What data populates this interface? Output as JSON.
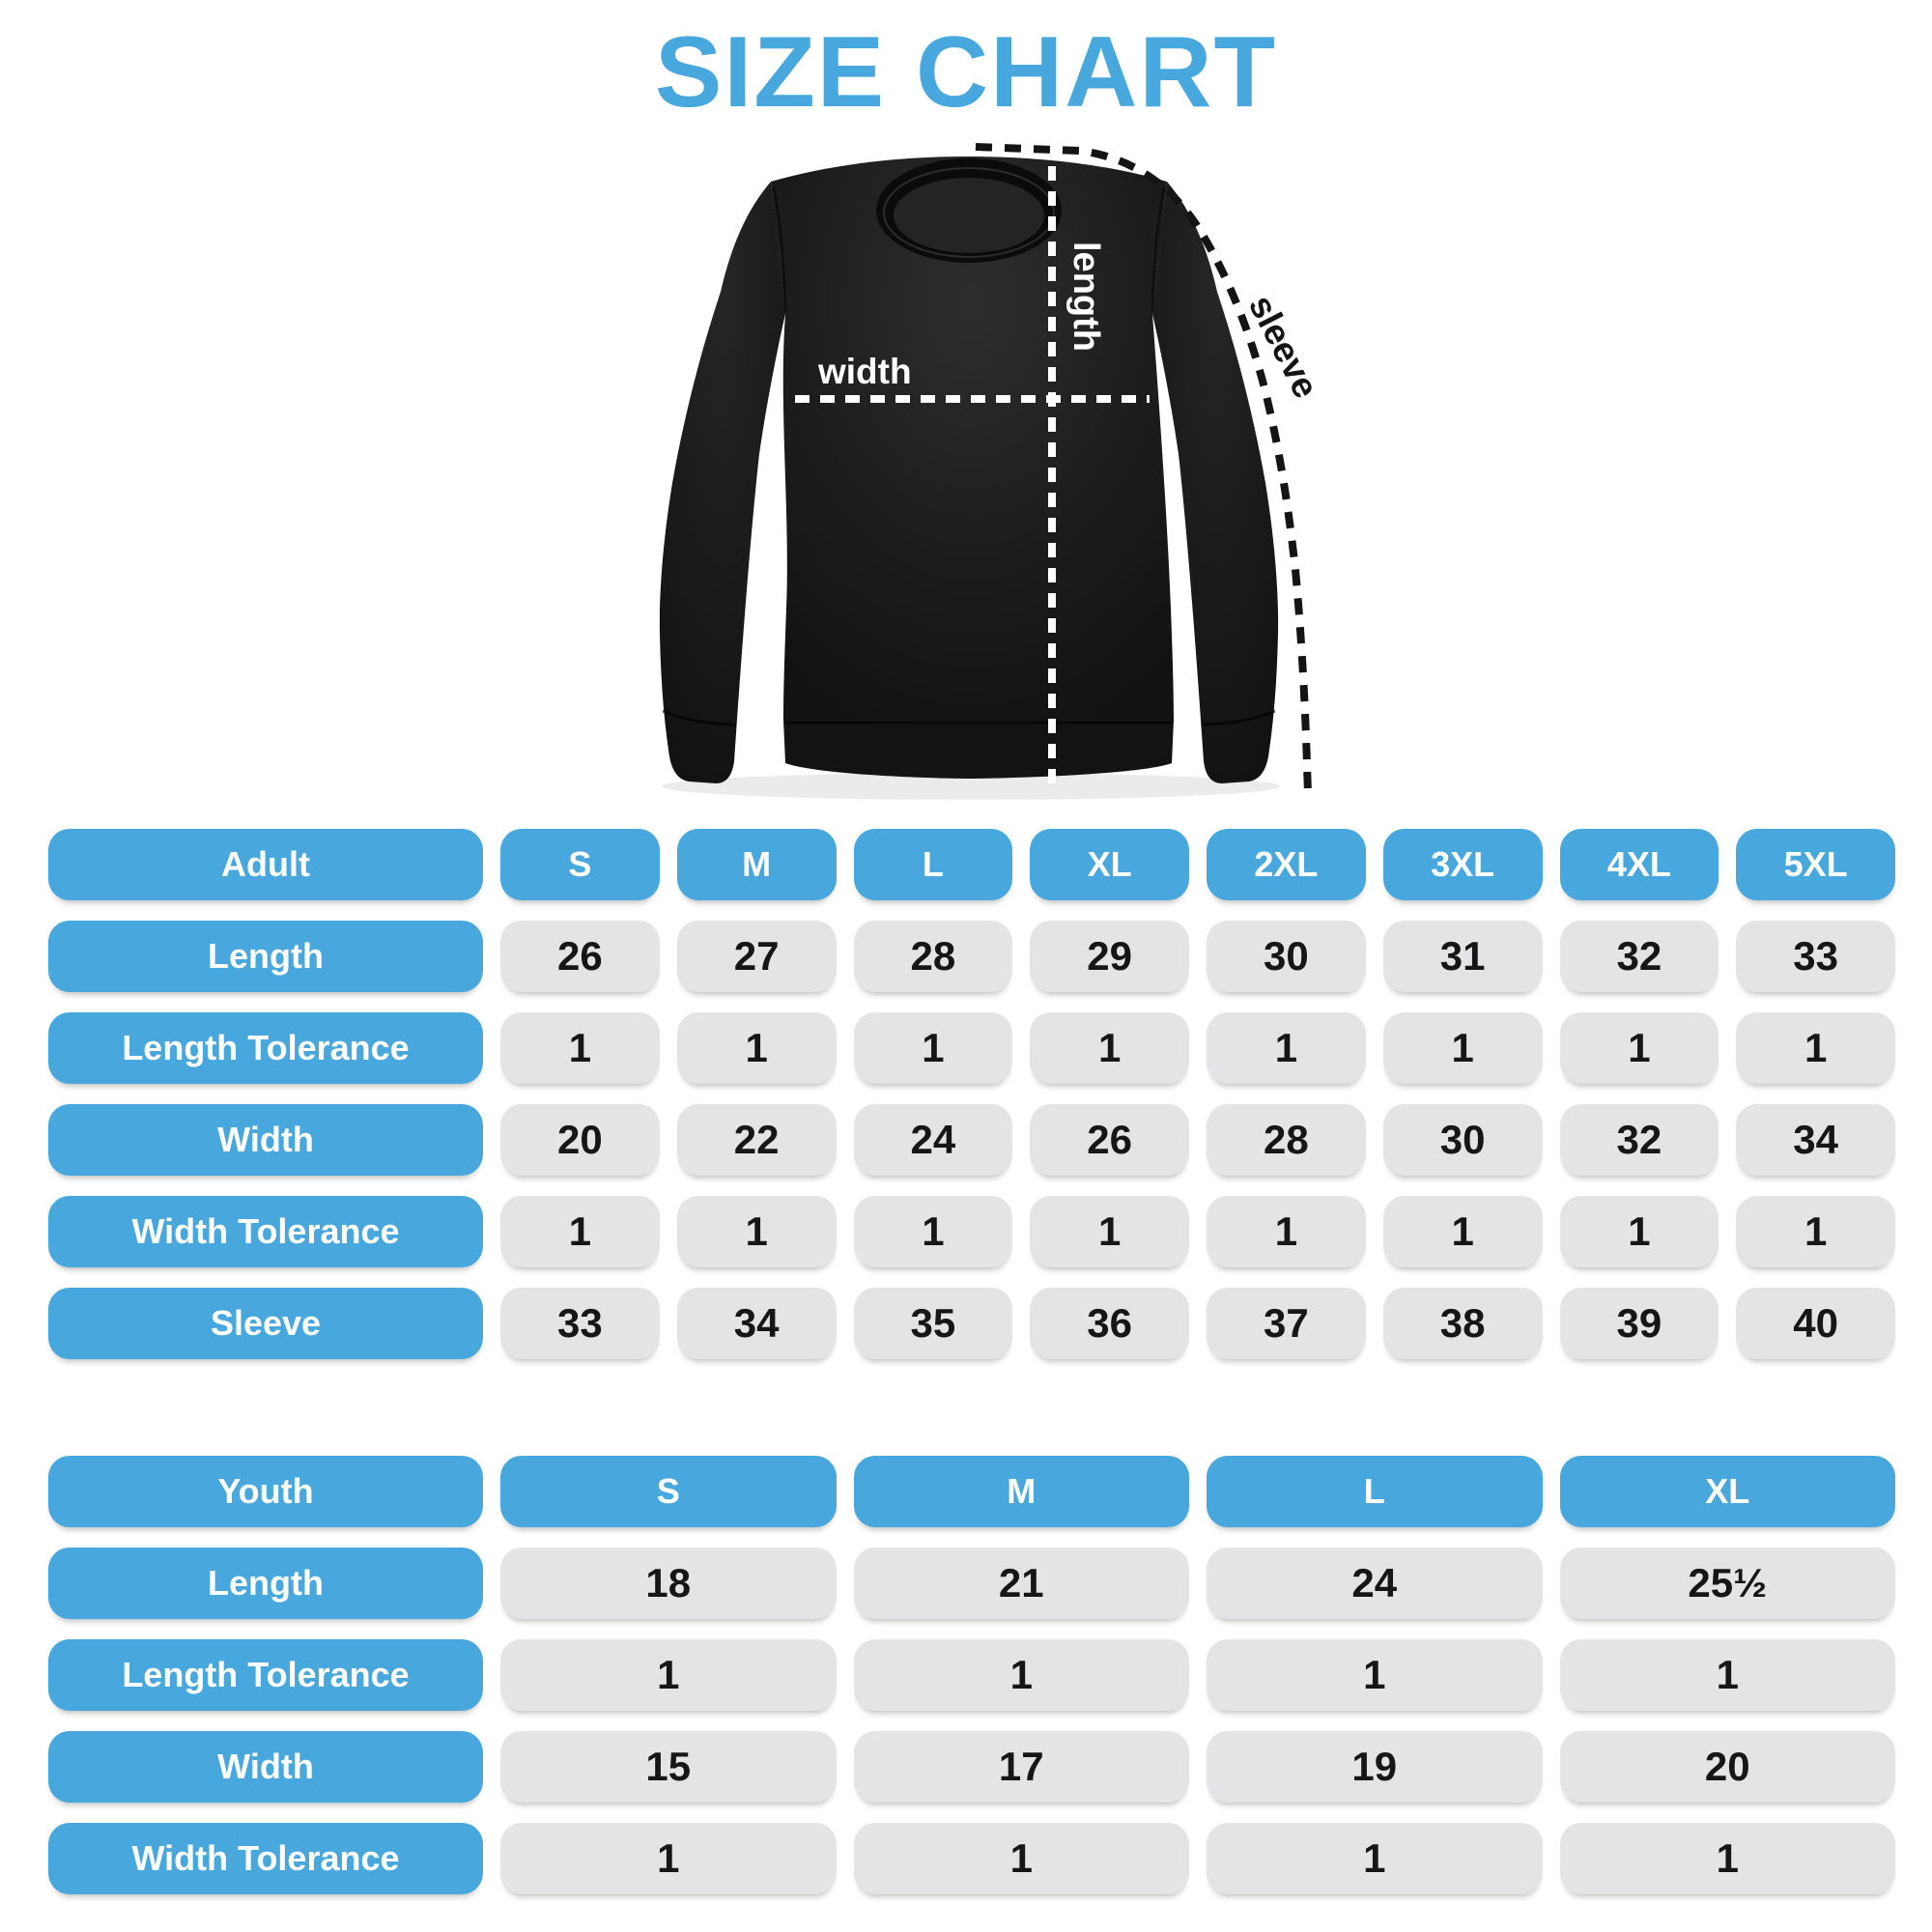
{
  "title": "SIZE CHART",
  "colors": {
    "accent_blue": "#48a8dd",
    "pill_gray": "#e4e4e6",
    "number_ink": "#161616",
    "shirt_black": "#1b1b1b",
    "measure_line_white": "#ffffff",
    "measure_line_black": "#141414"
  },
  "diagram": {
    "garment": "crewneck-sweatshirt",
    "labels": {
      "width": "width",
      "length": "length",
      "sleeve": "sleeve"
    }
  },
  "adult_table": {
    "header": {
      "label": "Adult",
      "sizes": [
        "S",
        "M",
        "L",
        "XL",
        "2XL",
        "3XL",
        "4XL",
        "5XL"
      ]
    },
    "rows": [
      {
        "label": "Length",
        "values": [
          "26",
          "27",
          "28",
          "29",
          "30",
          "31",
          "32",
          "33"
        ]
      },
      {
        "label": "Length Tolerance",
        "values": [
          "1",
          "1",
          "1",
          "1",
          "1",
          "1",
          "1",
          "1"
        ]
      },
      {
        "label": "Width",
        "values": [
          "20",
          "22",
          "24",
          "26",
          "28",
          "30",
          "32",
          "34"
        ]
      },
      {
        "label": "Width Tolerance",
        "values": [
          "1",
          "1",
          "1",
          "1",
          "1",
          "1",
          "1",
          "1"
        ]
      },
      {
        "label": "Sleeve",
        "values": [
          "33",
          "34",
          "35",
          "36",
          "37",
          "38",
          "39",
          "40"
        ]
      }
    ]
  },
  "youth_table": {
    "header": {
      "label": "Youth",
      "sizes": [
        "S",
        "M",
        "L",
        "XL"
      ]
    },
    "rows": [
      {
        "label": "Length",
        "values": [
          "18",
          "21",
          "24",
          "25½"
        ]
      },
      {
        "label": "Length Tolerance",
        "values": [
          "1",
          "1",
          "1",
          "1"
        ]
      },
      {
        "label": "Width",
        "values": [
          "15",
          "17",
          "19",
          "20"
        ]
      },
      {
        "label": "Width Tolerance",
        "values": [
          "1",
          "1",
          "1",
          "1"
        ]
      }
    ]
  },
  "chart_data": [
    {
      "type": "table",
      "title": "Adult sizes",
      "columns": [
        "Adult",
        "S",
        "M",
        "L",
        "XL",
        "2XL",
        "3XL",
        "4XL",
        "5XL"
      ],
      "rows": [
        [
          "Length",
          26,
          27,
          28,
          29,
          30,
          31,
          32,
          33
        ],
        [
          "Length Tolerance",
          1,
          1,
          1,
          1,
          1,
          1,
          1,
          1
        ],
        [
          "Width",
          20,
          22,
          24,
          26,
          28,
          30,
          32,
          34
        ],
        [
          "Width Tolerance",
          1,
          1,
          1,
          1,
          1,
          1,
          1,
          1
        ],
        [
          "Sleeve",
          33,
          34,
          35,
          36,
          37,
          38,
          39,
          40
        ]
      ]
    },
    {
      "type": "table",
      "title": "Youth sizes",
      "columns": [
        "Youth",
        "S",
        "M",
        "L",
        "XL"
      ],
      "rows": [
        [
          "Length",
          18,
          21,
          24,
          25.5
        ],
        [
          "Length Tolerance",
          1,
          1,
          1,
          1
        ],
        [
          "Width",
          15,
          17,
          19,
          20
        ],
        [
          "Width Tolerance",
          1,
          1,
          1,
          1
        ]
      ]
    }
  ]
}
